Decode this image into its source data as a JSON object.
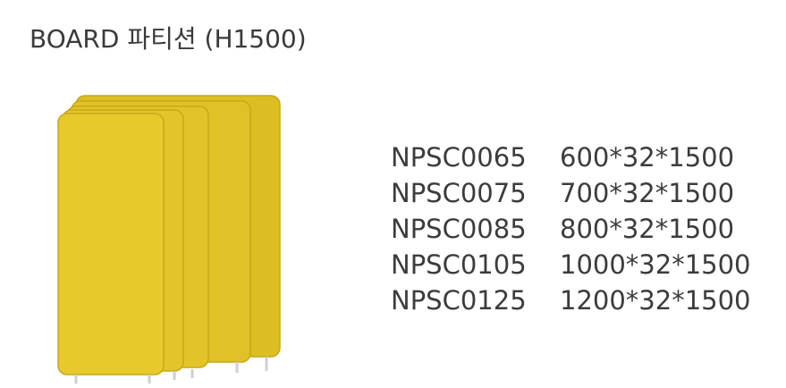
{
  "title": "BOARD 파티션 (H1500)",
  "image": {
    "panel_color": "#e6c62a",
    "panel_shade": "#cfb01f",
    "leg_color": "#d9d9d9"
  },
  "specs": [
    {
      "code": "NPSC0065",
      "size": "600*32*1500"
    },
    {
      "code": "NPSC0075",
      "size": "700*32*1500"
    },
    {
      "code": "NPSC0085",
      "size": "800*32*1500"
    },
    {
      "code": "NPSC0105",
      "size": "1000*32*1500"
    },
    {
      "code": "NPSC0125",
      "size": "1200*32*1500"
    }
  ]
}
